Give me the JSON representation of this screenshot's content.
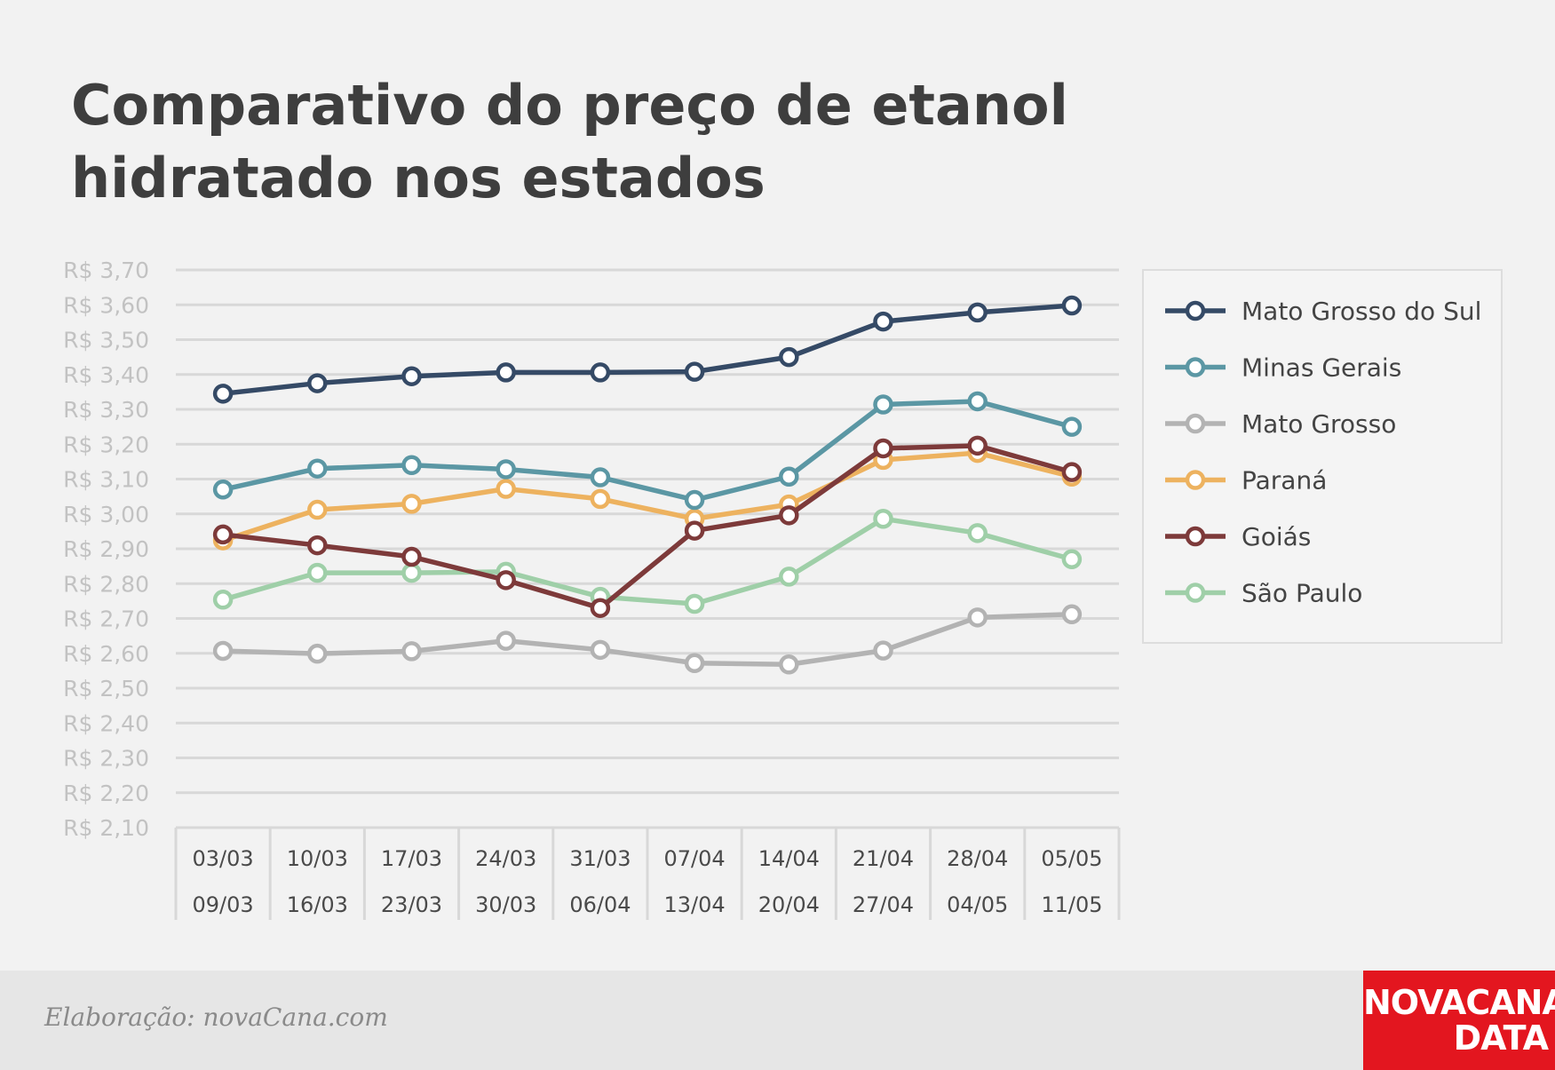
{
  "chart_data": {
    "type": "line",
    "title": "Comparativo do preço de etanol hidratado nos estados",
    "x_labels": [
      [
        "03/03",
        "09/03"
      ],
      [
        "10/03",
        "16/03"
      ],
      [
        "17/03",
        "23/03"
      ],
      [
        "24/03",
        "30/03"
      ],
      [
        "31/03",
        "06/04"
      ],
      [
        "07/04",
        "13/04"
      ],
      [
        "14/04",
        "20/04"
      ],
      [
        "21/04",
        "27/04"
      ],
      [
        "28/04",
        "04/05"
      ],
      [
        "05/05",
        "11/05"
      ]
    ],
    "y_ticks": [
      "R$ 3,70",
      "R$ 3,60",
      "R$ 3,50",
      "R$ 3,40",
      "R$ 3,30",
      "R$ 3,20",
      "R$ 3,10",
      "R$ 3,00",
      "R$ 2,90",
      "R$ 2,80",
      "R$ 2,70",
      "R$ 2,60",
      "R$ 2,50",
      "R$ 2,40",
      "R$ 2,30",
      "R$ 2,20",
      "R$ 2,10"
    ],
    "ylim": [
      2.1,
      3.7
    ],
    "grid": true,
    "legend_position": "right",
    "series": [
      {
        "name": "Mato Grosso do Sul",
        "color": "#354a66",
        "values": [
          3.345,
          3.375,
          3.395,
          3.406,
          3.406,
          3.408,
          3.45,
          3.552,
          3.578,
          3.598
        ]
      },
      {
        "name": "Minas Gerais",
        "color": "#5b97a4",
        "values": [
          3.07,
          3.13,
          3.14,
          3.128,
          3.105,
          3.04,
          3.107,
          3.314,
          3.323,
          3.25
        ]
      },
      {
        "name": "Mato Grosso",
        "color": "#b3b3b3",
        "values": [
          2.607,
          2.599,
          2.606,
          2.636,
          2.61,
          2.572,
          2.568,
          2.608,
          2.703,
          2.712
        ]
      },
      {
        "name": "Paraná",
        "color": "#edb25f",
        "values": [
          2.924,
          3.012,
          3.029,
          3.072,
          3.043,
          2.986,
          3.027,
          3.155,
          3.175,
          3.107
        ]
      },
      {
        "name": "Goiás",
        "color": "#7d3a3a",
        "values": [
          2.941,
          2.91,
          2.877,
          2.81,
          2.73,
          2.952,
          2.996,
          3.188,
          3.196,
          3.12
        ]
      },
      {
        "name": "São Paulo",
        "color": "#9fcfa8",
        "values": [
          2.754,
          2.831,
          2.831,
          2.834,
          2.762,
          2.742,
          2.82,
          2.986,
          2.945,
          2.87
        ]
      }
    ]
  },
  "footer": {
    "credit": "Elaboração: novaCana.com",
    "logo_line1": "NOVACANA",
    "logo_line2": "DATA"
  }
}
